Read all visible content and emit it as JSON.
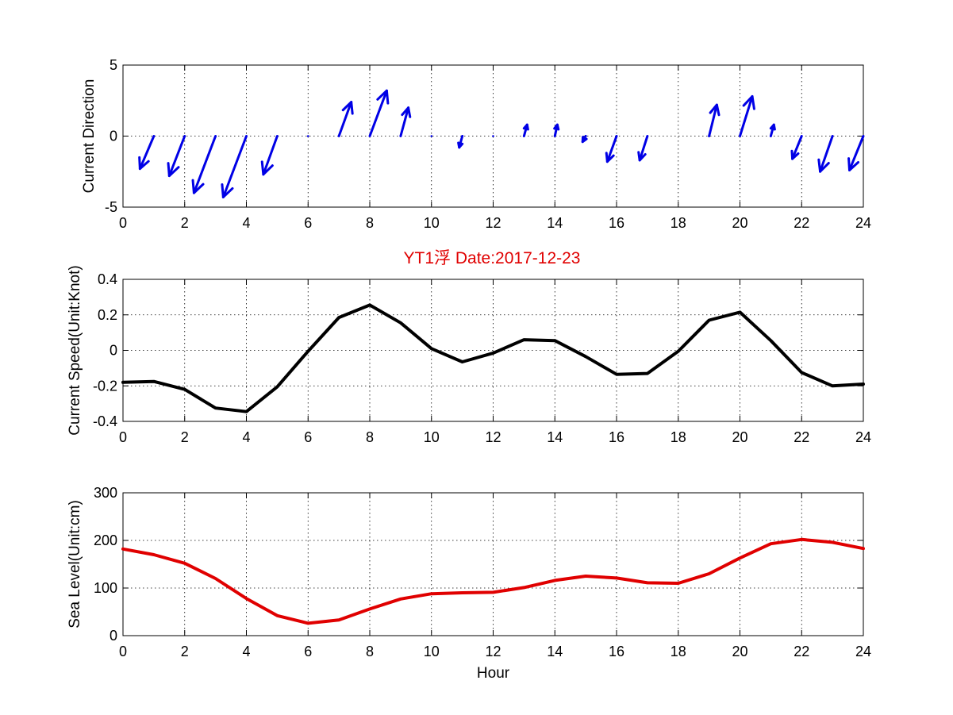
{
  "title": {
    "text": "YT1浮    Date:2017-12-23",
    "color": "#e00000"
  },
  "chart_data": [
    {
      "type": "quiver",
      "ylabel": "Current Direction",
      "xlabel": "",
      "xlim": [
        0,
        24
      ],
      "ylim": [
        -5,
        5
      ],
      "xticks": [
        "0",
        "2",
        "4",
        "6",
        "8",
        "10",
        "12",
        "14",
        "16",
        "18",
        "20",
        "22",
        "24"
      ],
      "yticks": [
        "-5",
        "0",
        "5"
      ],
      "grid": true,
      "color": "#0000e6",
      "x": [
        1,
        2,
        3,
        4,
        5,
        6,
        7,
        8,
        9,
        10,
        11,
        12,
        13,
        14,
        15,
        16,
        17,
        19,
        20,
        21,
        22,
        23,
        24
      ],
      "u": [
        -0.45,
        -0.5,
        -0.7,
        -0.75,
        -0.45,
        -0.02,
        0.4,
        0.55,
        0.25,
        0.02,
        -0.1,
        -0.03,
        0.1,
        0.08,
        -0.1,
        -0.3,
        -0.25,
        0.25,
        0.4,
        0.1,
        -0.3,
        -0.4,
        -0.45
      ],
      "v": [
        -2.3,
        -2.8,
        -4.0,
        -4.3,
        -2.7,
        0.0,
        2.4,
        3.2,
        2.0,
        0.1,
        -0.8,
        -0.2,
        0.8,
        0.8,
        -0.4,
        -1.8,
        -1.7,
        2.2,
        2.8,
        0.8,
        -1.6,
        -2.5,
        -2.4
      ]
    },
    {
      "type": "line",
      "ylabel": "Current Speed(Unit:Knot)",
      "xlabel": "",
      "xlim": [
        0,
        24
      ],
      "ylim": [
        -0.4,
        0.4
      ],
      "xticks": [
        "0",
        "2",
        "4",
        "6",
        "8",
        "10",
        "12",
        "14",
        "16",
        "18",
        "20",
        "22",
        "24"
      ],
      "yticks": [
        "-0.4",
        "-0.2",
        "0",
        "0.2",
        "0.4"
      ],
      "grid": true,
      "color": "#000000",
      "x": [
        0,
        1,
        2,
        3,
        4,
        5,
        6,
        7,
        8,
        9,
        10,
        11,
        12,
        13,
        14,
        15,
        16,
        17,
        18,
        19,
        20,
        21,
        22,
        23,
        24
      ],
      "y": [
        -0.18,
        -0.175,
        -0.22,
        -0.325,
        -0.345,
        -0.205,
        -0.005,
        0.185,
        0.255,
        0.155,
        0.01,
        -0.065,
        -0.015,
        0.06,
        0.055,
        -0.035,
        -0.135,
        -0.13,
        -0.005,
        0.17,
        0.215,
        0.055,
        -0.125,
        -0.2,
        -0.19
      ]
    },
    {
      "type": "line",
      "ylabel": "Sea Level(Unit:cm)",
      "xlabel": "Hour",
      "xlim": [
        0,
        24
      ],
      "ylim": [
        0,
        300
      ],
      "xticks": [
        "0",
        "2",
        "4",
        "6",
        "8",
        "10",
        "12",
        "14",
        "16",
        "18",
        "20",
        "22",
        "24"
      ],
      "yticks": [
        "0",
        "100",
        "200",
        "300"
      ],
      "grid": true,
      "color": "#e00000",
      "x": [
        0,
        1,
        2,
        3,
        4,
        5,
        6,
        7,
        8,
        9,
        10,
        11,
        12,
        13,
        14,
        15,
        16,
        17,
        18,
        19,
        20,
        21,
        22,
        23,
        24
      ],
      "y": [
        182,
        170,
        152,
        120,
        78,
        42,
        26,
        33,
        56,
        77,
        88,
        90,
        91,
        101,
        116,
        125,
        121,
        111,
        110,
        130,
        163,
        193,
        202,
        196,
        183
      ]
    }
  ]
}
